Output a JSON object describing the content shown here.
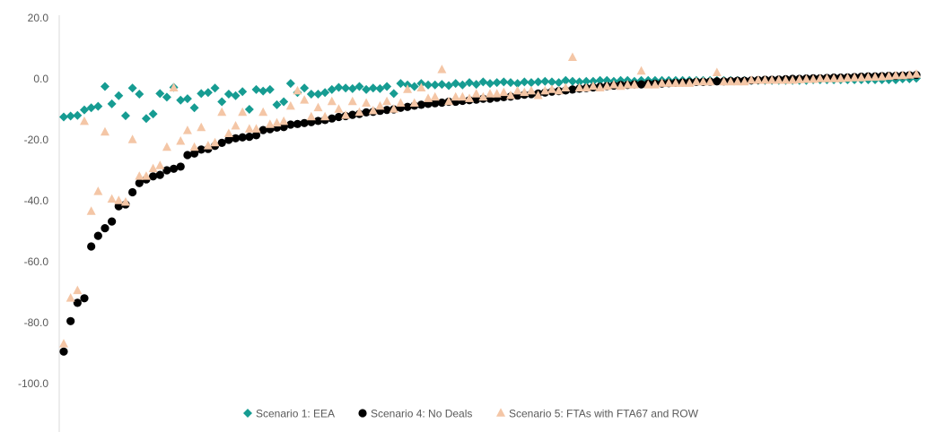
{
  "chart_data": {
    "type": "scatter",
    "title": "",
    "xlabel": "",
    "ylabel": "",
    "ylim": [
      -100,
      20
    ],
    "yticks": [
      20,
      0,
      -20,
      -40,
      -60,
      -80,
      -100
    ],
    "ytick_labels": [
      "20.0",
      "0.0",
      "-20.0",
      "-40.0",
      "-60.0",
      "-80.0",
      "-100.0"
    ],
    "x_count": 125,
    "grid": false,
    "legend": "bottom",
    "series": [
      {
        "name": "Scenario 1: EEA",
        "marker": "diamond",
        "color": "#169c92",
        "values": [
          -12.5,
          -12.2,
          -12.0,
          -10.2,
          -9.5,
          -9.0,
          -2.5,
          -8.2,
          -5.5,
          -12.1,
          -3.0,
          -5.0,
          -13.0,
          -11.5,
          -4.8,
          -6.0,
          -2.8,
          -7.0,
          -6.5,
          -9.5,
          -4.8,
          -4.5,
          -3.0,
          -7.5,
          -5.0,
          -5.5,
          -4.2,
          -10.0,
          -3.5,
          -4.0,
          -3.5,
          -8.5,
          -7.5,
          -1.5,
          -4.5,
          -3.0,
          -5.0,
          -5.0,
          -4.5,
          -3.5,
          -2.8,
          -3.0,
          -3.2,
          -2.5,
          -3.5,
          -3.0,
          -3.2,
          -2.5,
          -4.8,
          -1.5,
          -2.0,
          -2.5,
          -1.5,
          -2.0,
          -2.0,
          -1.8,
          -2.2,
          -1.5,
          -2.0,
          -1.2,
          -1.8,
          -1.0,
          -1.5,
          -1.2,
          -1.0,
          -1.2,
          -1.5,
          -1.0,
          -1.2,
          -1.0,
          -0.8,
          -1.0,
          -1.2,
          -0.5,
          -0.8,
          -1.0,
          -0.8,
          -0.8,
          -0.5,
          -0.5,
          -0.8,
          -0.5,
          -0.5,
          -0.8,
          -0.5,
          -0.5,
          -0.5,
          -0.5,
          -0.5,
          -0.5,
          -0.5,
          -0.5,
          -0.5,
          -0.5,
          -0.5,
          -0.5,
          -0.5,
          -0.5,
          -0.5,
          -0.5,
          -0.5,
          -0.5,
          -0.5,
          -0.5,
          -0.5,
          -0.5,
          -0.5,
          -0.5,
          -0.5,
          -0.3,
          -0.3,
          -0.3,
          -0.3,
          -0.3,
          -0.3,
          -0.3,
          -0.3,
          -0.3,
          -0.3,
          -0.3,
          -0.3,
          -0.3,
          0.0,
          0.0,
          0.2
        ]
      },
      {
        "name": "Scenario 4: No Deals",
        "marker": "circle",
        "color": "#000000",
        "values": [
          -89.5,
          -79.5,
          -73.5,
          -72.0,
          -55.0,
          -51.5,
          -49.0,
          -46.8,
          -41.8,
          -41.2,
          -37.2,
          -34.2,
          -33.0,
          -32.0,
          -31.5,
          -30.0,
          -29.5,
          -28.8,
          -25.0,
          -24.5,
          -23.2,
          -23.0,
          -22.0,
          -21.0,
          -20.0,
          -19.5,
          -19.2,
          -19.0,
          -18.5,
          -16.8,
          -16.5,
          -16.0,
          -15.8,
          -15.0,
          -14.8,
          -14.5,
          -14.2,
          -13.8,
          -13.5,
          -13.0,
          -12.5,
          -12.2,
          -11.8,
          -11.5,
          -11.0,
          -10.8,
          -10.5,
          -10.2,
          -10.0,
          -9.5,
          -9.2,
          -8.8,
          -8.5,
          -8.2,
          -8.0,
          -7.8,
          -7.5,
          -7.5,
          -7.2,
          -7.0,
          -6.8,
          -6.5,
          -6.5,
          -6.2,
          -6.0,
          -5.8,
          -5.5,
          -5.2,
          -5.0,
          -4.8,
          -4.5,
          -4.2,
          -4.0,
          -3.8,
          -3.5,
          -3.2,
          -3.0,
          -2.8,
          -2.6,
          -2.4,
          -2.2,
          -2.0,
          -2.0,
          -1.8,
          -1.8,
          -1.6,
          -1.6,
          -1.5,
          -1.4,
          -1.3,
          -1.2,
          -1.1,
          -1.0,
          -1.0,
          -0.9,
          -0.8,
          -0.8,
          -0.7,
          -0.6,
          -0.6,
          -0.5,
          -0.4,
          -0.3,
          -0.3,
          -0.2,
          -0.1,
          0.0,
          0.0,
          0.1,
          0.2,
          0.2,
          0.3,
          0.4,
          0.4,
          0.5,
          0.6,
          0.7,
          0.8,
          0.8,
          0.9,
          1.0,
          1.0,
          1.1,
          1.2,
          1.3
        ]
      },
      {
        "name": "Scenario 5: FTAs with FTA67 and ROW",
        "marker": "triangle",
        "color": "#f4c6a6",
        "values": [
          -87.0,
          -72.0,
          -69.5,
          -14.0,
          -43.5,
          -37.0,
          -17.5,
          -39.5,
          -40.0,
          -40.5,
          -20.0,
          -32.0,
          -32.0,
          -29.5,
          -28.5,
          -22.5,
          -3.0,
          -20.5,
          -17.0,
          -22.5,
          -16.0,
          -22.0,
          -21.0,
          -11.0,
          -18.0,
          -15.5,
          -11.0,
          -16.5,
          -16.5,
          -11.0,
          -15.0,
          -14.5,
          -14.0,
          -9.0,
          -4.0,
          -7.0,
          -12.5,
          -9.5,
          -12.5,
          -7.5,
          -10.0,
          -12.0,
          -7.5,
          -11.0,
          -8.0,
          -10.5,
          -9.0,
          -7.5,
          -10.0,
          -8.0,
          -3.5,
          -8.0,
          -3.0,
          -6.5,
          -6.0,
          3.0,
          -7.5,
          -6.0,
          -6.0,
          -6.5,
          -5.0,
          -6.0,
          -5.0,
          -5.0,
          -4.5,
          -5.5,
          -4.0,
          -4.5,
          -4.0,
          -5.5,
          -4.0,
          -3.5,
          -4.0,
          -3.0,
          7.0,
          -3.0,
          -3.0,
          -2.5,
          -3.0,
          -2.5,
          -2.0,
          -2.5,
          -2.0,
          -2.0,
          2.5,
          -2.0,
          -2.0,
          -1.5,
          -1.5,
          -1.5,
          -1.5,
          -1.5,
          -1.0,
          -1.0,
          -1.0,
          2.0,
          -1.0,
          -1.0,
          -1.0,
          -1.0,
          -0.5,
          -0.5,
          -0.5,
          -0.5,
          -0.5,
          -0.5,
          -0.5,
          -0.3,
          -0.2,
          -0.2,
          0.0,
          0.0,
          0.0,
          0.0,
          0.2,
          0.3,
          0.3,
          0.5,
          0.5,
          0.6,
          0.8,
          1.0,
          1.0,
          1.2,
          1.5
        ]
      }
    ]
  }
}
